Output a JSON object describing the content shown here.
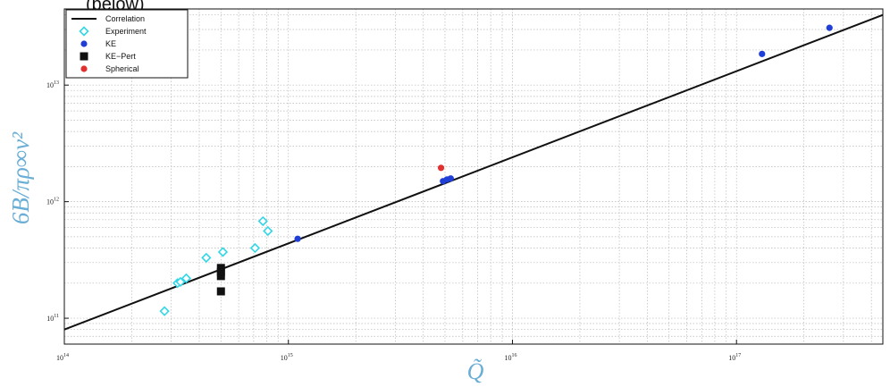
{
  "caption": "(below)",
  "chart_data": {
    "type": "scatter",
    "xlabel": "Q̃",
    "ylabel": "6B/πρ∞ν²",
    "x_scale": "log",
    "y_scale": "log",
    "xlim": [
      100000000000000.0,
      4.5e+17
    ],
    "ylim": [
      60000000000.0,
      45000000000000.0
    ],
    "grid": true,
    "x_ticks": [
      {
        "value": 100000000000000.0,
        "base": "10",
        "exp": "14"
      },
      {
        "value": 1000000000000000.0,
        "base": "10",
        "exp": "15"
      },
      {
        "value": 1e+16,
        "base": "10",
        "exp": "16"
      },
      {
        "value": 1e+17,
        "base": "10",
        "exp": "17"
      }
    ],
    "y_ticks": [
      {
        "value": 100000000000.0,
        "base": "10",
        "exp": "11"
      },
      {
        "value": 1000000000000.0,
        "base": "10",
        "exp": "12"
      },
      {
        "value": 10000000000000.0,
        "base": "10",
        "exp": "13"
      }
    ],
    "legend_position": "top-left",
    "series": [
      {
        "name": "Correlation",
        "kind": "line",
        "color": "#111111",
        "points": [
          [
            100000000000000.0,
            80000000000.0
          ],
          [
            4.5e+17,
            40000000000000.0
          ]
        ]
      },
      {
        "name": "Experiment",
        "kind": "diamond",
        "color": "#33d6e6",
        "points": [
          [
            280000000000000.0,
            115000000000.0
          ],
          [
            320000000000000.0,
            200000000000.0
          ],
          [
            330000000000000.0,
            205000000000.0
          ],
          [
            350000000000000.0,
            220000000000.0
          ],
          [
            430000000000000.0,
            330000000000.0
          ],
          [
            510000000000000.0,
            370000000000.0
          ],
          [
            710000000000000.0,
            400000000000.0
          ],
          [
            770000000000000.0,
            680000000000.0
          ],
          [
            810000000000000.0,
            560000000000.0
          ]
        ]
      },
      {
        "name": "KE",
        "kind": "dot",
        "color": "#1f3fd6",
        "points": [
          [
            1100000000000000.0,
            480000000000.0
          ],
          [
            4900000000000000.0,
            1500000000000.0
          ],
          [
            5100000000000000.0,
            1550000000000.0
          ],
          [
            5300000000000000.0,
            1580000000000.0
          ],
          [
            1.3e+17,
            18500000000000.0
          ],
          [
            2.6e+17,
            31000000000000.0
          ]
        ]
      },
      {
        "name": "KE−Pert",
        "kind": "square",
        "color": "#111111",
        "points": [
          [
            500000000000000.0,
            230000000000.0
          ],
          [
            500000000000000.0,
            250000000000.0
          ],
          [
            500000000000000.0,
            270000000000.0
          ],
          [
            500000000000000.0,
            170000000000.0
          ]
        ]
      },
      {
        "name": "Spherical",
        "kind": "dot",
        "color": "#e23030",
        "points": [
          [
            4800000000000000.0,
            1950000000000.0
          ]
        ]
      }
    ]
  }
}
